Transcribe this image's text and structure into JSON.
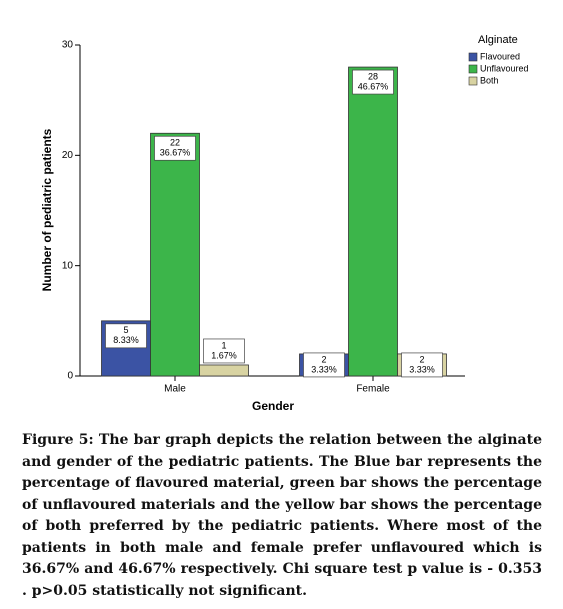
{
  "chart_data": {
    "type": "bar",
    "y_label": "Number of pediatric patients",
    "x_label": "Gender",
    "legend_title": "Alginate",
    "categories": [
      "Male",
      "Female"
    ],
    "series": [
      {
        "name": "Flavoured",
        "color": "#3b53a4",
        "values": [
          5,
          2
        ],
        "percent_labels": [
          "8.33%",
          "3.33%"
        ]
      },
      {
        "name": "Unflavoured",
        "color": "#3cb54a",
        "values": [
          22,
          28
        ],
        "percent_labels": [
          "36.67%",
          "46.67%"
        ]
      },
      {
        "name": "Both",
        "color": "#d8d3a2",
        "values": [
          1,
          2
        ],
        "percent_labels": [
          "1.67%",
          "3.33%"
        ]
      }
    ],
    "ylim": [
      0,
      30
    ],
    "yticks": [
      0,
      10,
      20,
      30
    ],
    "legend": "right"
  },
  "caption": [
    "Figure 5: The bar graph depicts the relation between the alginate",
    "and gender of the pediatric patients. The Blue bar represents the",
    "percentage of flavoured material, green bar shows the percentage",
    "of unflavoured materials and the yellow bar shows the percentage",
    "of both preferred by the pediatric patients. Where most of the",
    "patients in both male and female prefer unflavoured which is",
    "36.67% and 46.67% respectively. Chi square test p value is - 0.353",
    ". p>0.05 statistically not significant."
  ]
}
